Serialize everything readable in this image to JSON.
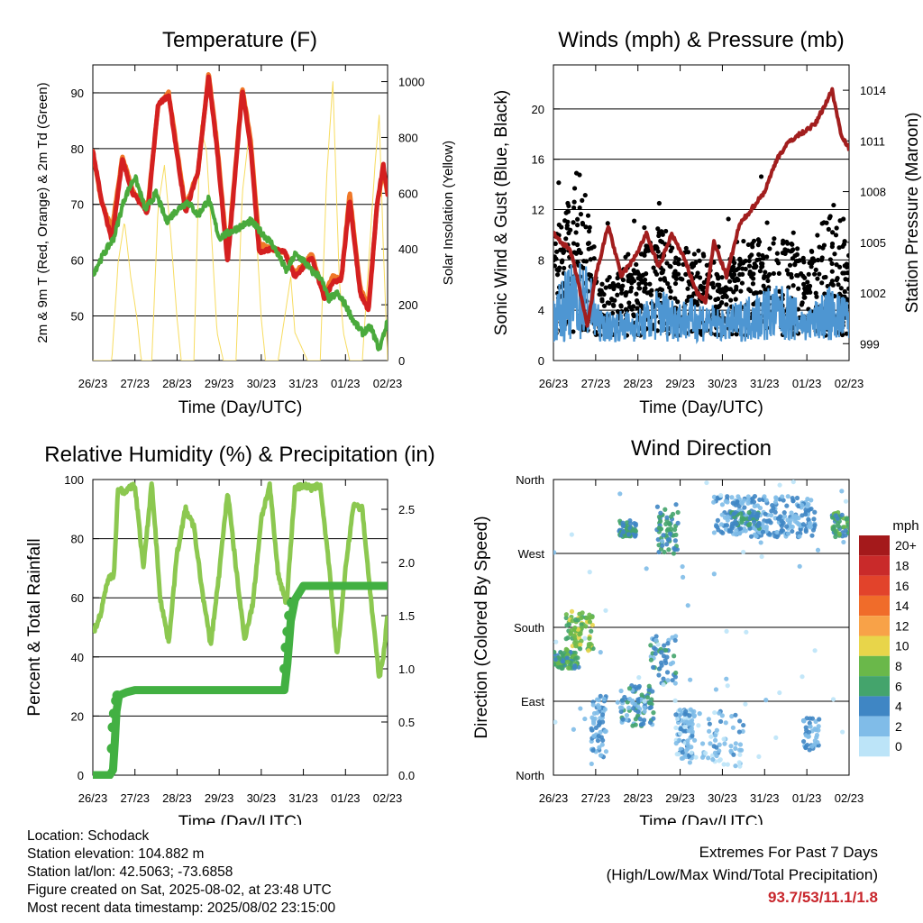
{
  "chart_data": [
    {
      "id": "temp",
      "type": "line",
      "title": "Temperature (F)",
      "xlabel": "Time (Day/UTC)",
      "ylabel": "2m & 9m T (Red, Orange) & 2m Td (Green)",
      "y2label": "Solar Insolation (Yellow)",
      "x_ticks": [
        "26/23",
        "27/23",
        "28/23",
        "29/23",
        "30/23",
        "31/23",
        "01/23",
        "02/23"
      ],
      "ylim": [
        42,
        95
      ],
      "y_ticks": [
        50,
        60,
        70,
        80,
        90
      ],
      "y2lim": [
        0,
        1060
      ],
      "y2_ticks": [
        0,
        200,
        400,
        600,
        800,
        1000
      ],
      "grid_y": [
        50,
        60,
        70,
        80,
        90
      ],
      "series": [
        {
          "color": "#f07828",
          "width": 5,
          "t": [
            0,
            0.2,
            0.45,
            0.7,
            0.95,
            1.3,
            1.55,
            1.8,
            2.2,
            2.5,
            2.75,
            2.95,
            3.2,
            3.55,
            3.75,
            3.95,
            4.25,
            4.55,
            4.8,
            5.2,
            5.5,
            5.7,
            5.9,
            6.1,
            6.35,
            6.55,
            6.75,
            6.9,
            7.0
          ],
          "v": [
            79.5,
            70.5,
            65.5,
            78.5,
            72.5,
            69.5,
            87.5,
            90,
            69.5,
            76,
            93.5,
            81,
            60.5,
            91,
            81.5,
            63,
            62,
            61.5,
            57.5,
            61,
            54,
            57,
            56.5,
            72,
            55,
            52,
            70,
            76,
            72
          ]
        },
        {
          "color": "#d42020",
          "width": 5,
          "t": [
            0,
            0.2,
            0.45,
            0.7,
            0.95,
            1.3,
            1.55,
            1.8,
            2.2,
            2.5,
            2.75,
            2.95,
            3.2,
            3.55,
            3.75,
            3.95,
            4.25,
            4.55,
            4.8,
            5.2,
            5.5,
            5.7,
            5.9,
            6.1,
            6.35,
            6.55,
            6.75,
            6.9,
            7.0
          ],
          "v": [
            79.5,
            71,
            63.5,
            78,
            72,
            68.5,
            88,
            89.5,
            68.5,
            76,
            93,
            80,
            59.5,
            90.5,
            80,
            61.5,
            62,
            61.5,
            57,
            60.5,
            53,
            56,
            56.5,
            71,
            54,
            51,
            70,
            77,
            72
          ]
        },
        {
          "color": "#4aaa3c",
          "width": 4,
          "t": [
            0,
            0.25,
            0.5,
            0.75,
            1.0,
            1.25,
            1.5,
            1.75,
            2.0,
            2.25,
            2.5,
            2.75,
            3.0,
            3.25,
            3.5,
            3.75,
            4.0,
            4.25,
            4.4,
            4.6,
            4.8,
            5.0,
            5.2,
            5.4,
            5.6,
            5.8,
            6.0,
            6.2,
            6.4,
            6.6,
            6.8,
            7.0
          ],
          "v": [
            57.5,
            61,
            64,
            71,
            75,
            69,
            72,
            67,
            69,
            70.5,
            68,
            71,
            64,
            65,
            66,
            67,
            65,
            63,
            61,
            58,
            61,
            60,
            58,
            57,
            53,
            54,
            52,
            49,
            47,
            48,
            44,
            49
          ]
        },
        {
          "color": "#f7dc60",
          "width": 1,
          "axis": "y2",
          "t": [
            0,
            0.45,
            0.6,
            0.75,
            0.9,
            1.05,
            1.15,
            1.4,
            1.55,
            1.7,
            1.85,
            2.0,
            2.1,
            2.4,
            2.55,
            2.7,
            2.8,
            2.95,
            3.1,
            3.4,
            3.55,
            3.7,
            3.85,
            4.0,
            4.1,
            4.4,
            4.55,
            4.7,
            4.8,
            4.95,
            5.1,
            5.4,
            5.55,
            5.7,
            5.85,
            5.95,
            6.1,
            6.4,
            6.55,
            6.7,
            6.8,
            6.9,
            7.0
          ],
          "v": [
            0,
            0,
            350,
            500,
            300,
            150,
            0,
            0,
            550,
            700,
            450,
            150,
            0,
            0,
            850,
            750,
            500,
            100,
            0,
            0,
            600,
            800,
            550,
            150,
            0,
            0,
            150,
            300,
            100,
            50,
            0,
            0,
            650,
            1000,
            300,
            100,
            0,
            0,
            350,
            700,
            880,
            400,
            0
          ]
        }
      ]
    },
    {
      "id": "wind",
      "type": "scatter",
      "title": "Winds (mph) & Pressure (mb)",
      "xlabel": "Time (Day/UTC)",
      "ylabel": "Sonic Wind & Gust (Blue, Black)",
      "y2label": "Station Pressure (Maroon)",
      "x_ticks": [
        "26/23",
        "27/23",
        "28/23",
        "29/23",
        "30/23",
        "31/23",
        "01/23",
        "02/23"
      ],
      "ylim": [
        0,
        23.5
      ],
      "y_ticks": [
        0,
        4,
        8,
        12,
        16,
        20
      ],
      "y2lim": [
        998,
        1015.5
      ],
      "y2_ticks": [
        999,
        1002,
        1005,
        1008,
        1011,
        1014
      ],
      "grid_y": [
        4,
        8,
        12,
        16,
        20
      ],
      "gust_bands": {
        "t": [
          0,
          0.25,
          0.5,
          0.8,
          1.1,
          1.5,
          2.0,
          2.5,
          3.0,
          3.5,
          4.0,
          4.5,
          5.0,
          5.5,
          6.0,
          6.5,
          7.0
        ],
        "hi": [
          9,
          13,
          14,
          13,
          6,
          7,
          8,
          11,
          9,
          9,
          7,
          10,
          10,
          10,
          8,
          12,
          9
        ],
        "color": "#000000"
      },
      "wind_bands": {
        "t": [
          0,
          0.25,
          0.5,
          0.8,
          1.1,
          1.5,
          2.0,
          2.5,
          3.0,
          3.5,
          4.0,
          4.5,
          5.0,
          5.5,
          6.0,
          6.5,
          7.0
        ],
        "hi": [
          5,
          7,
          8,
          8,
          4,
          4,
          4,
          6,
          5,
          5,
          4,
          5,
          6,
          6,
          4,
          6,
          5
        ],
        "color": "#4e96d2"
      },
      "series": [
        {
          "name": "pressure",
          "axis": "y2",
          "color": "#a21e1e",
          "width": 4,
          "t": [
            0,
            0.2,
            0.4,
            0.6,
            0.8,
            1.0,
            1.3,
            1.6,
            1.9,
            2.2,
            2.5,
            2.8,
            3.1,
            3.4,
            3.6,
            3.8,
            4.1,
            4.4,
            4.7,
            5.0,
            5.3,
            5.6,
            5.9,
            6.2,
            6.4,
            6.6,
            6.8,
            7.0
          ],
          "v": [
            1005.5,
            1005,
            1004.5,
            1002.5,
            1000,
            1003,
            1006,
            1003,
            1004,
            1005.5,
            1003.5,
            1005.5,
            1004,
            1002,
            1001.5,
            1005,
            1003,
            1006,
            1007,
            1008,
            1010,
            1011,
            1011.5,
            1012,
            1013,
            1014,
            1011.5,
            1010.5
          ]
        }
      ]
    },
    {
      "id": "rh",
      "type": "line",
      "title": "Relative Humidity (%) & Precipitation (in)",
      "xlabel": "Time (Day/UTC)",
      "ylabel": "Percent & Total Rainfall",
      "x_ticks": [
        "26/23",
        "27/23",
        "28/23",
        "29/23",
        "30/23",
        "31/23",
        "01/23",
        "02/23"
      ],
      "ylim": [
        0,
        100
      ],
      "y_ticks": [
        0,
        20,
        40,
        60,
        80,
        100
      ],
      "y2lim": [
        0,
        2.78
      ],
      "y2_ticks": [
        "0.0",
        "0.5",
        "1.0",
        "1.5",
        "2.0",
        "2.5"
      ],
      "grid_y": [
        20,
        40,
        60,
        80
      ],
      "series": [
        {
          "name": "rh",
          "color": "#8cc850",
          "width": 5,
          "t": [
            0,
            0.2,
            0.35,
            0.5,
            0.6,
            0.75,
            1.0,
            1.2,
            1.4,
            1.6,
            1.8,
            2.0,
            2.2,
            2.4,
            2.6,
            2.8,
            3.0,
            3.2,
            3.4,
            3.6,
            3.8,
            4.0,
            4.2,
            4.4,
            4.6,
            4.8,
            5.0,
            5.2,
            5.4,
            5.6,
            5.8,
            6.0,
            6.2,
            6.4,
            6.6,
            6.8,
            6.9,
            7.0
          ],
          "v": [
            48,
            55,
            66,
            68,
            97,
            96,
            98,
            70,
            99,
            60,
            45,
            75,
            90,
            84,
            62,
            44,
            68,
            96,
            70,
            46,
            58,
            87,
            98,
            68,
            58,
            97,
            98,
            97,
            98,
            72,
            40,
            70,
            92,
            90,
            60,
            33,
            40,
            54
          ]
        },
        {
          "name": "precip",
          "axis": "y2",
          "color": "#42b042",
          "width": 9,
          "dots": true,
          "t": [
            0,
            0.25,
            0.4,
            0.48,
            0.52,
            0.56,
            0.62,
            0.8,
            1.0,
            1.5,
            2.0,
            3.0,
            4.0,
            4.55,
            4.62,
            4.7,
            4.8,
            5.0,
            5.4,
            6.0,
            7.0
          ],
          "v": [
            0,
            0,
            0,
            0.05,
            0.3,
            0.6,
            0.75,
            0.78,
            0.8,
            0.8,
            0.8,
            0.8,
            0.8,
            0.8,
            1.05,
            1.45,
            1.65,
            1.78,
            1.78,
            1.78,
            1.78
          ]
        }
      ]
    },
    {
      "id": "dir",
      "type": "scatter",
      "title": "Wind Direction",
      "xlabel": "Time (Day/UTC)",
      "ylabel": "Direction (Colored By Speed)",
      "x_ticks": [
        "26/23",
        "27/23",
        "28/23",
        "29/23",
        "30/23",
        "31/23",
        "01/23",
        "02/23"
      ],
      "y_ticks": [
        "North",
        "East",
        "South",
        "West",
        "North"
      ],
      "ylim": [
        0,
        360
      ],
      "grid_y": [
        90,
        180,
        270
      ],
      "clusters": [
        {
          "t0": 0.0,
          "t1": 0.6,
          "d0": 130,
          "d1": 150,
          "speed": 6,
          "n": 80
        },
        {
          "t0": 0.3,
          "t1": 0.95,
          "d0": 150,
          "d1": 200,
          "speed": 8,
          "n": 80
        },
        {
          "t0": 0.9,
          "t1": 1.25,
          "d0": 20,
          "d1": 100,
          "speed": 3,
          "n": 60
        },
        {
          "t0": 1.55,
          "t1": 1.95,
          "d0": 290,
          "d1": 310,
          "speed": 5,
          "n": 60
        },
        {
          "t0": 1.6,
          "t1": 2.4,
          "d0": 60,
          "d1": 110,
          "speed": 4,
          "n": 90
        },
        {
          "t0": 2.3,
          "t1": 2.9,
          "d0": 110,
          "d1": 170,
          "speed": 4,
          "n": 50
        },
        {
          "t0": 2.45,
          "t1": 2.95,
          "d0": 270,
          "d1": 330,
          "speed": 5,
          "n": 60
        },
        {
          "t0": 2.9,
          "t1": 3.3,
          "d0": 20,
          "d1": 80,
          "speed": 2,
          "n": 70
        },
        {
          "t0": 3.1,
          "t1": 4.5,
          "d0": 10,
          "d1": 80,
          "speed": 2,
          "n": 80
        },
        {
          "t0": 3.8,
          "t1": 6.2,
          "d0": 290,
          "d1": 340,
          "speed": 3,
          "n": 260
        },
        {
          "t0": 4.2,
          "t1": 4.9,
          "d0": 300,
          "d1": 320,
          "speed": 5,
          "n": 50
        },
        {
          "t0": 5.9,
          "t1": 6.3,
          "d0": 30,
          "d1": 70,
          "speed": 3,
          "n": 40
        },
        {
          "t0": 6.6,
          "t1": 7.0,
          "d0": 290,
          "d1": 320,
          "speed": 6,
          "n": 50
        },
        {
          "t0": 0.0,
          "t1": 7.0,
          "d0": 0,
          "d1": 360,
          "speed": 1,
          "n": 60
        }
      ],
      "legend": {
        "title": "mph",
        "placement": "right",
        "labels": [
          "20+",
          "18",
          "16",
          "14",
          "12",
          "10",
          "8",
          "6",
          "4",
          "2",
          "0"
        ],
        "colors": [
          "#a4191b",
          "#c92a2a",
          "#e2432b",
          "#f06c2a",
          "#f8a248",
          "#e8d54a",
          "#6ab84a",
          "#44a46c",
          "#3f86c4",
          "#80bce8",
          "#bce4f8"
        ]
      }
    }
  ],
  "info": {
    "location": "Location: Schodack",
    "elevation": "Station elevation: 104.882 m",
    "latlon": "Station lat/lon: 42.5063; -73.6858",
    "created": "Figure created on Sat, 2025-08-02, at 23:48 UTC",
    "recent": "Most recent data timestamp: 2025/08/02 23:15:00"
  },
  "extremes": {
    "heading": "Extremes For Past 7 Days",
    "subheading": "(High/Low/Max Wind/Total Precipitation)",
    "values": "93.7/53/11.1/1.8"
  }
}
